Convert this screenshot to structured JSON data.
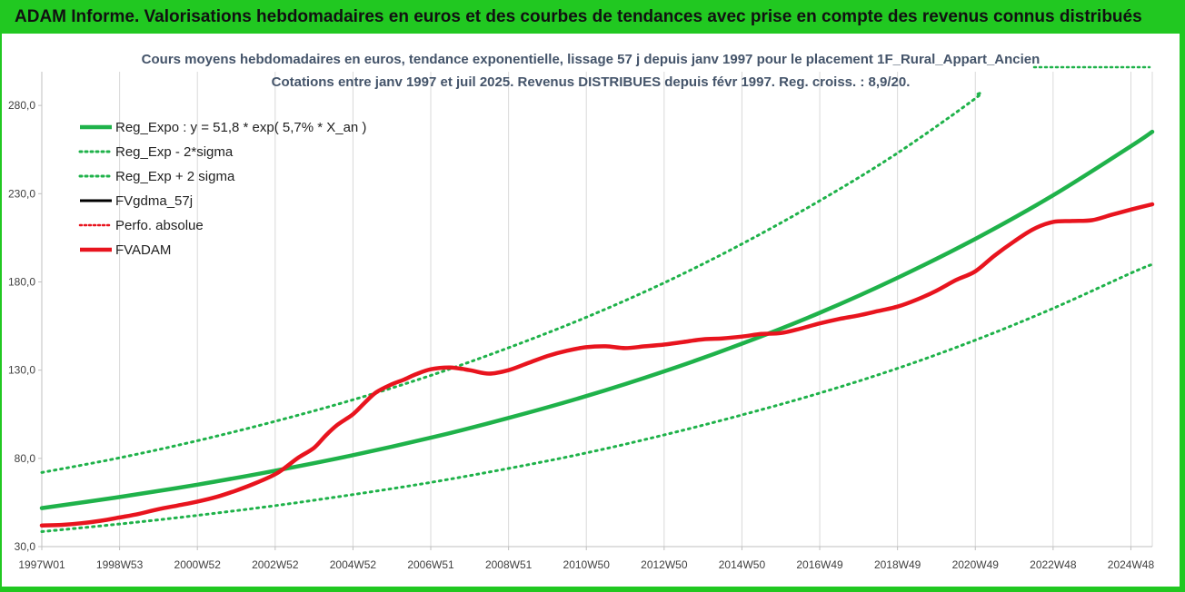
{
  "banner": {
    "title": "ADAM Informe. Valorisations hebdomadaires en euros et des courbes de tendances avec prise en compte des revenus connus distribués"
  },
  "colors": {
    "banner": "#21c821",
    "reg_expo": "#1fb24a",
    "fvadam": "#e8141e",
    "fvgdma": "#000000",
    "grid": "#d9d9d9"
  },
  "chart_data": {
    "type": "line",
    "title": "Cours moyens hebdomadaires en euros, tendance exponentielle, lissage 57 j depuis janv 1997  pour le placement 1F_Rural_Appart_Ancien",
    "subtitle": "Cotations entre janv 1997 et juil 2025. Revenus DISTRIBUES depuis févr 1997. Reg. croiss. : 8,9/20.",
    "xlabel": "",
    "ylabel": "",
    "ylim": [
      30,
      295
    ],
    "xlim": [
      1997.0,
      2025.55
    ],
    "y_ticks": [
      "30,0",
      "80,0",
      "130,0",
      "180,0",
      "230,0",
      "280,0"
    ],
    "y_tick_values": [
      30,
      80,
      130,
      180,
      230,
      280
    ],
    "x_ticks": [
      "1997W01",
      "1998W53",
      "2000W52",
      "2002W52",
      "2004W52",
      "2006W51",
      "2008W51",
      "2010W50",
      "2012W50",
      "2014W50",
      "2016W49",
      "2018W49",
      "2020W49",
      "2022W48",
      "2024W48"
    ],
    "x_tick_values": [
      1997.0,
      1999.0,
      2001.0,
      2003.0,
      2005.0,
      2007.0,
      2009.0,
      2011.0,
      2013.0,
      2015.0,
      2017.0,
      2019.0,
      2021.0,
      2023.0,
      2025.0
    ],
    "grid": "vertical",
    "legend_position": "top-left",
    "legend": [
      "Reg_Expo : y = 51,8 * exp( 5,7% *  X_an )",
      "Reg_Exp - 2*sigma",
      "Reg_Exp + 2 sigma",
      "FVgdma_57j",
      "Perfo. absolue",
      "FVADAM"
    ],
    "series": [
      {
        "name": "Reg_Expo : y = 51,8 * exp( 5,7% *  X_an )",
        "style": "solid",
        "color": "#1fb24a",
        "x": [
          1997.0,
          1999.0,
          2001.0,
          2003.0,
          2005.0,
          2007.0,
          2009.0,
          2011.0,
          2013.0,
          2015.0,
          2017.0,
          2019.0,
          2021.0,
          2023.0,
          2025.0,
          2025.55
        ],
        "y": [
          51.8,
          58.1,
          65.1,
          73.0,
          81.8,
          91.7,
          102.9,
          115.3,
          129.3,
          145.0,
          162.5,
          182.3,
          204.4,
          229.1,
          256.9,
          265.1
        ]
      },
      {
        "name": "Reg_Exp - 2*sigma",
        "style": "dotted",
        "color": "#1fb24a",
        "x": [
          1997.0,
          1999.0,
          2001.0,
          2003.0,
          2005.0,
          2007.0,
          2009.0,
          2011.0,
          2013.0,
          2015.0,
          2017.0,
          2019.0,
          2021.0,
          2023.0,
          2025.0,
          2025.55
        ],
        "y": [
          38.5,
          42.8,
          47.7,
          53.2,
          59.5,
          66.4,
          74.3,
          83.1,
          93.3,
          104.6,
          117.0,
          131.0,
          147.0,
          165.0,
          185.0,
          190.0
        ]
      },
      {
        "name": "Reg_Exp + 2 sigma",
        "style": "dotted",
        "color": "#1fb24a",
        "x": [
          1997.0,
          1999.0,
          2001.0,
          2003.0,
          2005.0,
          2007.0,
          2009.0,
          2011.0,
          2013.0,
          2015.0,
          2017.0,
          2019.0,
          2021.0,
          2021.0
        ],
        "y": [
          72.0,
          80.3,
          90.0,
          101.0,
          113.2,
          127.0,
          142.7,
          160.0,
          179.5,
          201.5,
          226.0,
          253.0,
          284.0,
          286.0
        ]
      },
      {
        "name": "FVADAM",
        "style": "solid-thick",
        "color": "#e8141e",
        "x": [
          1997.0,
          1997.5,
          1998.0,
          1998.5,
          1999.0,
          1999.5,
          2000.0,
          2000.5,
          2001.0,
          2001.5,
          2002.0,
          2002.5,
          2003.0,
          2003.3,
          2003.6,
          2004.0,
          2004.3,
          2004.6,
          2005.0,
          2005.3,
          2005.6,
          2006.0,
          2006.3,
          2006.6,
          2007.0,
          2007.5,
          2008.0,
          2008.5,
          2009.0,
          2009.5,
          2010.0,
          2010.5,
          2011.0,
          2011.5,
          2012.0,
          2012.5,
          2013.0,
          2013.5,
          2014.0,
          2014.5,
          2015.0,
          2015.5,
          2016.0,
          2016.5,
          2017.0,
          2017.5,
          2018.0,
          2018.5,
          2019.0,
          2019.5,
          2020.0,
          2020.5,
          2021.0,
          2021.5,
          2022.0,
          2022.5,
          2023.0,
          2023.5,
          2024.0,
          2024.5,
          2025.0,
          2025.55
        ],
        "y": [
          42.0,
          42.3,
          43.2,
          44.6,
          46.5,
          48.6,
          51.2,
          53.3,
          55.5,
          58.2,
          61.8,
          66.0,
          71.0,
          75.5,
          80.5,
          86.0,
          93.0,
          99.0,
          105.0,
          111.5,
          117.5,
          122.0,
          124.5,
          127.5,
          130.5,
          131.5,
          130.0,
          128.0,
          130.0,
          134.0,
          138.0,
          141.0,
          143.0,
          143.5,
          142.5,
          143.5,
          144.5,
          146.0,
          147.5,
          148.0,
          149.0,
          150.5,
          151.0,
          153.5,
          156.5,
          159.0,
          161.0,
          163.5,
          166.0,
          170.0,
          175.0,
          181.0,
          186.0,
          195.0,
          203.0,
          210.0,
          214.0,
          214.5,
          215.0,
          218.0,
          221.0,
          224.0
        ]
      },
      {
        "name": "FVgdma_57j",
        "style": "solid",
        "color": "#000000",
        "x": [
          1997.0,
          1997.5,
          1998.0,
          1998.5,
          1999.0,
          1999.5,
          2000.0,
          2000.5,
          2001.0,
          2001.5,
          2002.0,
          2002.5,
          2003.0,
          2003.3,
          2003.6,
          2004.0,
          2004.3,
          2004.6,
          2005.0,
          2005.3,
          2005.6,
          2006.0,
          2006.3,
          2006.6,
          2007.0,
          2007.5,
          2008.0,
          2008.5,
          2009.0,
          2009.5,
          2010.0,
          2010.5,
          2011.0,
          2011.5,
          2012.0,
          2012.5,
          2013.0,
          2013.5,
          2014.0,
          2014.5,
          2015.0,
          2015.5,
          2016.0,
          2016.5,
          2017.0,
          2017.5,
          2018.0,
          2018.5,
          2019.0,
          2019.5,
          2020.0,
          2020.5,
          2021.0,
          2021.5,
          2022.0,
          2022.5,
          2023.0,
          2023.5,
          2024.0,
          2024.5,
          2025.0,
          2025.55
        ],
        "y": [
          42.0,
          42.3,
          43.2,
          44.6,
          46.5,
          48.6,
          51.2,
          53.3,
          55.5,
          58.2,
          61.8,
          66.0,
          71.0,
          75.5,
          80.5,
          86.0,
          93.0,
          99.0,
          105.0,
          111.5,
          117.5,
          122.0,
          124.5,
          127.5,
          130.5,
          131.5,
          130.0,
          128.0,
          130.0,
          134.0,
          138.0,
          141.0,
          143.0,
          143.5,
          142.5,
          143.5,
          144.5,
          146.0,
          147.5,
          148.0,
          149.0,
          150.5,
          151.0,
          153.5,
          156.5,
          159.0,
          161.0,
          163.5,
          166.0,
          170.0,
          175.0,
          181.0,
          186.0,
          195.0,
          203.0,
          210.0,
          214.0,
          214.5,
          215.0,
          218.0,
          221.0,
          224.0
        ]
      },
      {
        "name": "Perfo. absolue",
        "style": "dotted",
        "color": "#e8141e",
        "x": [],
        "y": []
      }
    ]
  }
}
